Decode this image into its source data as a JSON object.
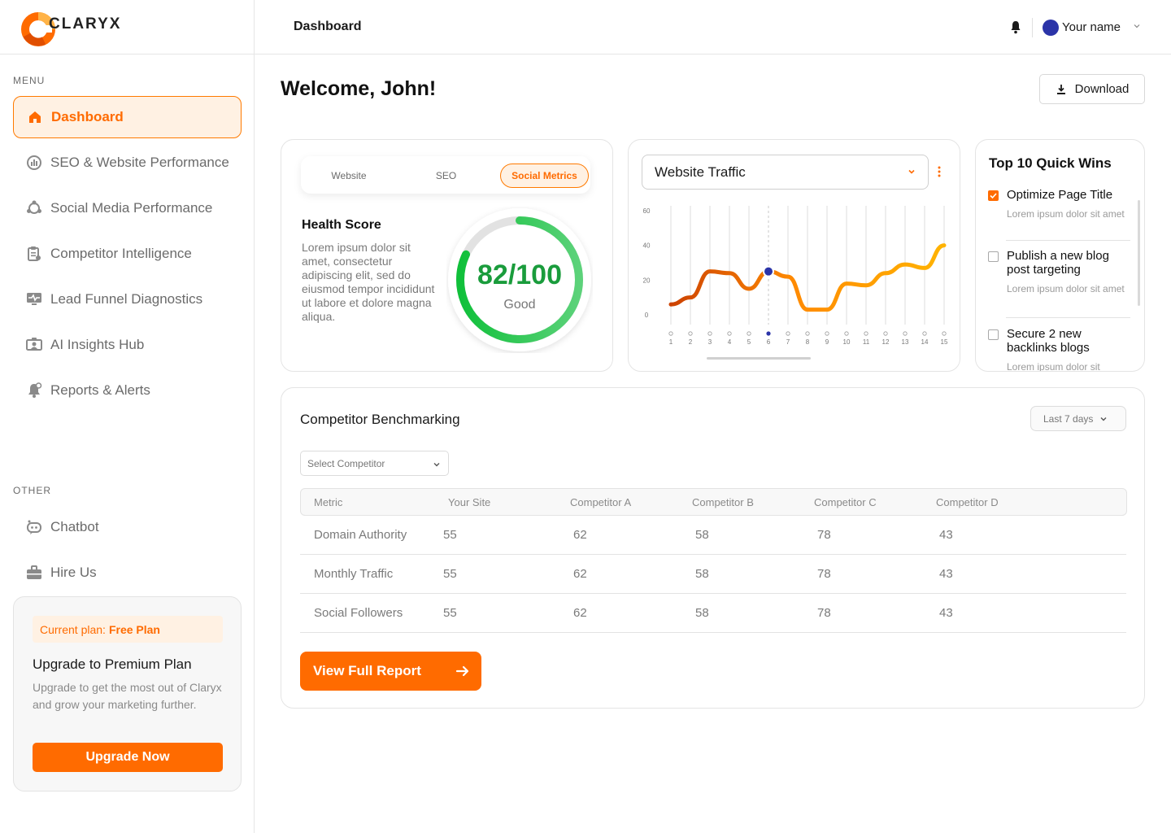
{
  "brand": {
    "name": "CLARYX",
    "accent": "#ff6b00"
  },
  "header": {
    "title": "Dashboard",
    "user_name": "Your name"
  },
  "sidebar": {
    "menu_label": "MENU",
    "items": [
      {
        "label": "Dashboard",
        "icon": "home-icon",
        "active": true
      },
      {
        "label": "SEO & Website Performance",
        "icon": "gauge-icon"
      },
      {
        "label": "Social Media Performance",
        "icon": "network-icon"
      },
      {
        "label": "Competitor Intelligence",
        "icon": "clipboard-icon"
      },
      {
        "label": "Lead Funnel Diagnostics",
        "icon": "monitor-pulse-icon"
      },
      {
        "label": "AI Insights Hub",
        "icon": "ai-screen-icon"
      },
      {
        "label": "Reports & Alerts",
        "icon": "alert-bell-icon"
      }
    ],
    "other_label": "OTHER",
    "other_items": [
      {
        "label": "Chatbot",
        "icon": "chatbot-icon"
      },
      {
        "label": "Hire Us",
        "icon": "briefcase-icon"
      }
    ],
    "plan": {
      "current_prefix": "Current plan:",
      "current_plan": "Free Plan",
      "title": "Upgrade to Premium Plan",
      "description": "Upgrade to get the most out of Claryx and grow your marketing further.",
      "button": "Upgrade Now"
    }
  },
  "main": {
    "welcome": "Welcome, John!",
    "download_label": "Download"
  },
  "health": {
    "tabs": [
      {
        "label": "Website"
      },
      {
        "label": "SEO"
      },
      {
        "label": "Social Metrics",
        "active": true
      }
    ],
    "title": "Health Score",
    "description": "Lorem ipsum dolor sit amet, consectetur adipiscing elit, sed do eiusmod tempor incididunt ut labore et dolore magna aliqua.",
    "score_text": "82/100",
    "score": 82,
    "max": 100,
    "status": "Good"
  },
  "traffic": {
    "selected": "Website Traffic"
  },
  "chart_data": {
    "type": "line",
    "title": "",
    "x": [
      1,
      2,
      3,
      4,
      5,
      6,
      7,
      8,
      9,
      10,
      11,
      12,
      13,
      14,
      15
    ],
    "series": [
      {
        "values": [
          6,
          10,
          25,
          24,
          15,
          25,
          22,
          3,
          3,
          18,
          17,
          24,
          29,
          27,
          40
        ]
      }
    ],
    "highlight_x": 6,
    "ylim": [
      0,
      60
    ],
    "yticks": [
      0,
      20,
      40,
      60
    ],
    "grid": true
  },
  "quick_wins": {
    "title": "Top 10 Quick Wins",
    "items": [
      {
        "title": "Optimize Page Title",
        "desc": "Lorem ipsum dolor sit amet",
        "checked": true
      },
      {
        "title": "Publish a new blog post targeting",
        "desc": "Lorem ipsum dolor sit amet",
        "checked": false
      },
      {
        "title": "Secure 2 new backlinks blogs",
        "desc": "Lorem ipsum dolor sit",
        "checked": false
      }
    ]
  },
  "benchmark": {
    "title": "Competitor Benchmarking",
    "range": "Last 7 days",
    "select_placeholder": "Select Competitor",
    "columns": [
      "Metric",
      "Your Site",
      "Competitor A",
      "Competitor B",
      "Competitor C",
      "Competitor D"
    ],
    "rows": [
      [
        "Domain Authority",
        "55",
        "62",
        "58",
        "78",
        "43"
      ],
      [
        "Monthly Traffic",
        "55",
        "62",
        "58",
        "78",
        "43"
      ],
      [
        "Social Followers",
        "55",
        "62",
        "58",
        "78",
        "43"
      ]
    ],
    "report_button": "View Full Report"
  }
}
